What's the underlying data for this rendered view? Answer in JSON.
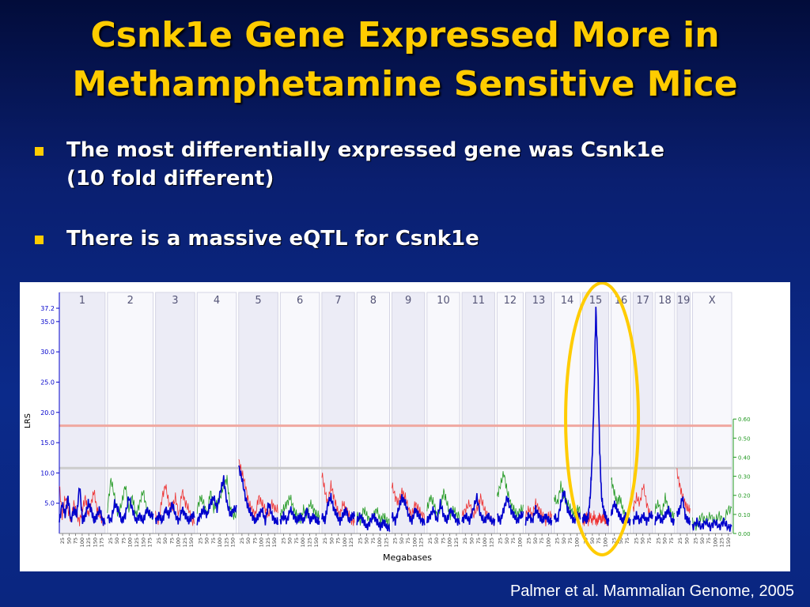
{
  "title": {
    "line1": "Csnk1e Gene Expressed More in",
    "line2": "Methamphetamine Sensitive Mice"
  },
  "bullets": [
    {
      "line1": "The most differentially expressed gene was Csnk1e",
      "line2": "(10 fold different)"
    },
    {
      "line1": "There is a massive eQTL for Csnk1e",
      "line2": ""
    }
  ],
  "citation": "Palmer et al. Mammalian Genome, 2005",
  "colors": {
    "title": "#ffcc00",
    "lrs_line": "#0000cc",
    "additive_red": "#ee3333",
    "additive_green": "#229922",
    "significant_threshold": "#f0a8a0",
    "suggestive_threshold": "#cccccc",
    "highlight_ellipse": "#ffcc00"
  },
  "chart_data": {
    "type": "line",
    "xlabel": "Megabases",
    "ylabel": "LRS",
    "ylim": [
      0,
      37.2
    ],
    "y_ticks": [
      "5.0",
      "10.0",
      "15.0",
      "20.0",
      "25.0",
      "30.0",
      "35.0",
      "37.2"
    ],
    "y2lim": [
      0,
      0.6
    ],
    "y2_ticks": [
      "0.00",
      "0.10",
      "0.20",
      "0.30",
      "0.40",
      "0.50",
      "0.60"
    ],
    "thresholds": {
      "significant_lrs": 17.8,
      "suggestive_lrs": 10.8
    },
    "highlight": {
      "chromosome": "15"
    },
    "chromosomes": [
      {
        "name": "1",
        "mb": [
          25,
          50,
          75,
          100,
          125,
          150,
          175
        ],
        "lrs": [
          2,
          5,
          3,
          6,
          2,
          4,
          3,
          8,
          2,
          3,
          5,
          4,
          2,
          3,
          4,
          2
        ],
        "add": [
          8,
          3,
          6,
          4,
          2,
          5,
          3,
          2,
          4,
          6,
          3,
          5,
          7,
          4,
          3,
          2
        ]
      },
      {
        "name": "2",
        "mb": [
          25,
          50,
          75,
          100,
          125,
          150,
          175
        ],
        "lrs": [
          3,
          2,
          5,
          4,
          2,
          3,
          6,
          4,
          2,
          3,
          2,
          4,
          3
        ],
        "add": [
          4,
          9,
          6,
          3,
          5,
          8,
          4,
          6,
          3,
          5,
          7,
          4,
          3
        ]
      },
      {
        "name": "3",
        "mb": [
          25,
          50,
          75,
          100,
          125,
          150
        ],
        "lrs": [
          2,
          3,
          2,
          4,
          3,
          5,
          3,
          2,
          4,
          3,
          2,
          3
        ],
        "add": [
          3,
          2,
          6,
          8,
          5,
          4,
          6,
          3,
          7,
          5,
          4,
          2
        ]
      },
      {
        "name": "4",
        "mb": [
          25,
          50,
          75,
          100,
          125,
          150
        ],
        "lrs": [
          2,
          3,
          4,
          3,
          5,
          6,
          4,
          7,
          9,
          5,
          3,
          4
        ],
        "add": [
          4,
          6,
          5,
          3,
          7,
          4,
          5,
          6,
          8,
          9,
          4,
          3
        ]
      },
      {
        "name": "5",
        "mb": [
          25,
          50,
          75,
          100,
          125,
          150
        ],
        "lrs": [
          11,
          9,
          6,
          4,
          3,
          2,
          3,
          4,
          2,
          5,
          3,
          2
        ],
        "add": [
          12,
          10,
          8,
          5,
          4,
          3,
          6,
          5,
          4,
          3,
          5,
          4
        ]
      },
      {
        "name": "6",
        "mb": [
          25,
          50,
          75,
          100,
          125,
          150
        ],
        "lrs": [
          2,
          3,
          2,
          4,
          3,
          2,
          3,
          2,
          4,
          2,
          3,
          2
        ],
        "add": [
          3,
          4,
          5,
          6,
          4,
          3,
          2,
          4,
          3,
          5,
          4,
          3
        ]
      },
      {
        "name": "7",
        "mb": [
          25,
          50,
          75,
          100,
          125
        ],
        "lrs": [
          3,
          2,
          5,
          6,
          4,
          3,
          2,
          3,
          4,
          2,
          3
        ],
        "add": [
          10,
          7,
          5,
          8,
          6,
          4,
          3,
          5,
          4,
          3,
          2
        ]
      },
      {
        "name": "8",
        "mb": [
          25,
          50,
          75,
          100,
          125
        ],
        "lrs": [
          2,
          3,
          2,
          1,
          2,
          3,
          2,
          1,
          2,
          1
        ],
        "add": [
          3,
          2,
          4,
          3,
          2,
          3,
          4,
          2,
          3,
          2
        ]
      },
      {
        "name": "9",
        "mb": [
          25,
          50,
          75,
          100,
          125
        ],
        "lrs": [
          3,
          2,
          4,
          6,
          5,
          3,
          2,
          4,
          3,
          2
        ],
        "add": [
          8,
          6,
          5,
          7,
          6,
          4,
          3,
          5,
          4,
          3
        ]
      },
      {
        "name": "10",
        "mb": [
          25,
          50,
          75,
          100,
          125
        ],
        "lrs": [
          2,
          3,
          4,
          2,
          5,
          3,
          2,
          4,
          3,
          2
        ],
        "add": [
          4,
          6,
          5,
          3,
          4,
          7,
          5,
          3,
          4,
          3
        ]
      },
      {
        "name": "11",
        "mb": [
          25,
          50,
          75,
          100,
          125
        ],
        "lrs": [
          2,
          3,
          2,
          4,
          6,
          3,
          2,
          3,
          2
        ],
        "add": [
          3,
          4,
          5,
          3,
          4,
          6,
          4,
          3,
          2
        ]
      },
      {
        "name": "12",
        "mb": [
          25,
          50,
          75,
          100
        ],
        "lrs": [
          3,
          2,
          4,
          6,
          4,
          3,
          2,
          3
        ],
        "add": [
          6,
          8,
          10,
          7,
          5,
          4,
          3,
          4
        ]
      },
      {
        "name": "13",
        "mb": [
          25,
          50,
          75,
          100
        ],
        "lrs": [
          2,
          3,
          2,
          4,
          3,
          2,
          3,
          2
        ],
        "add": [
          3,
          4,
          3,
          5,
          4,
          3,
          2,
          3
        ]
      },
      {
        "name": "14",
        "mb": [
          25,
          50,
          75,
          100
        ],
        "lrs": [
          3,
          2,
          5,
          7,
          4,
          3,
          2,
          3
        ],
        "add": [
          6,
          5,
          8,
          6,
          5,
          4,
          3,
          4
        ]
      },
      {
        "name": "15",
        "mb": [
          25,
          50,
          75,
          100
        ],
        "lrs": [
          2,
          3,
          2,
          3,
          6,
          12,
          22,
          37.2,
          28,
          14,
          6,
          4,
          3,
          2
        ],
        "add": [
          2,
          2,
          3,
          2,
          3,
          2,
          3,
          2,
          2,
          3,
          2,
          3,
          2,
          2
        ]
      },
      {
        "name": "16",
        "mb": [
          25,
          50,
          75
        ],
        "lrs": [
          3,
          5,
          4,
          3,
          2,
          3,
          2
        ],
        "add": [
          9,
          7,
          5,
          6,
          4,
          3,
          2
        ]
      },
      {
        "name": "17",
        "mb": [
          25,
          50,
          75
        ],
        "lrs": [
          2,
          3,
          2,
          3,
          2,
          3
        ],
        "add": [
          4,
          6,
          5,
          8,
          5,
          3
        ]
      },
      {
        "name": "18",
        "mb": [
          25,
          50,
          75
        ],
        "lrs": [
          2,
          3,
          2,
          3,
          4,
          2
        ],
        "add": [
          4,
          5,
          3,
          6,
          4,
          3
        ]
      },
      {
        "name": "19",
        "mb": [
          25,
          50
        ],
        "lrs": [
          3,
          4,
          6,
          3,
          2
        ],
        "add": [
          10,
          8,
          6,
          5,
          4
        ]
      },
      {
        "name": "X",
        "mb": [
          25,
          50,
          75,
          100,
          125,
          150
        ],
        "lrs": [
          1,
          2,
          1,
          2,
          1,
          2,
          1,
          2,
          1
        ],
        "add": [
          2,
          1,
          3,
          2,
          3,
          2,
          3,
          2,
          4
        ]
      }
    ]
  }
}
